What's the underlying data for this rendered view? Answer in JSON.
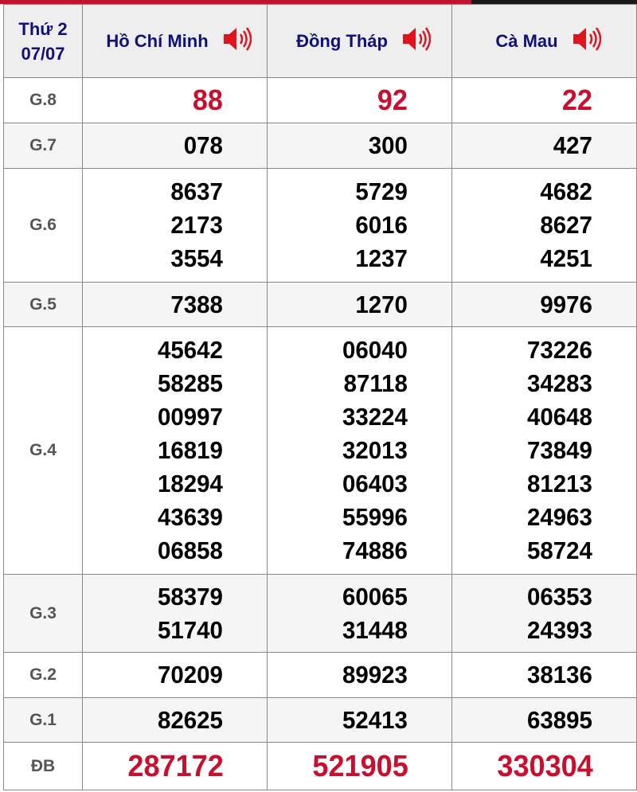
{
  "header": {
    "day": "Thứ 2",
    "date": "07/07",
    "provinces": [
      "Hồ Chí Minh",
      "Đồng Tháp",
      "Cà Mau"
    ],
    "speaker_icon": "speaker-icon",
    "title_color": "#10107a",
    "accent_color": "#c8102e"
  },
  "prizes": [
    {
      "label": "G.8",
      "values": [
        [
          "88"
        ],
        [
          "92"
        ],
        [
          "22"
        ]
      ]
    },
    {
      "label": "G.7",
      "values": [
        [
          "078"
        ],
        [
          "300"
        ],
        [
          "427"
        ]
      ]
    },
    {
      "label": "G.6",
      "values": [
        [
          "8637",
          "2173",
          "3554"
        ],
        [
          "5729",
          "6016",
          "1237"
        ],
        [
          "4682",
          "8627",
          "4251"
        ]
      ]
    },
    {
      "label": "G.5",
      "values": [
        [
          "7388"
        ],
        [
          "1270"
        ],
        [
          "9976"
        ]
      ]
    },
    {
      "label": "G.4",
      "values": [
        [
          "45642",
          "58285",
          "00997",
          "16819",
          "18294",
          "43639",
          "06858"
        ],
        [
          "06040",
          "87118",
          "33224",
          "32013",
          "06403",
          "55996",
          "74886"
        ],
        [
          "73226",
          "34283",
          "40648",
          "73849",
          "81213",
          "24963",
          "58724"
        ]
      ]
    },
    {
      "label": "G.3",
      "values": [
        [
          "58379",
          "51740"
        ],
        [
          "60065",
          "31448"
        ],
        [
          "06353",
          "24393"
        ]
      ]
    },
    {
      "label": "G.2",
      "values": [
        [
          "70209"
        ],
        [
          "89923"
        ],
        [
          "38136"
        ]
      ]
    },
    {
      "label": "G.1",
      "values": [
        [
          "82625"
        ],
        [
          "52413"
        ],
        [
          "63895"
        ]
      ]
    },
    {
      "label": "ĐB",
      "values": [
        [
          "287172"
        ],
        [
          "521905"
        ],
        [
          "330304"
        ]
      ]
    }
  ]
}
